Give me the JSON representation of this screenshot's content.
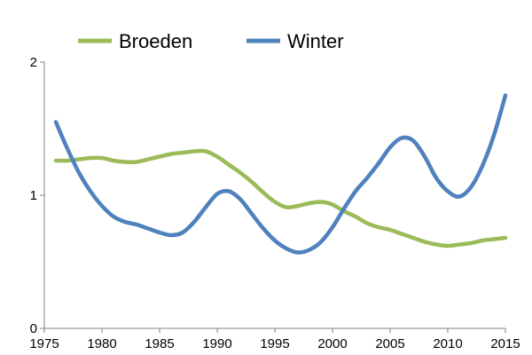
{
  "chart_data": {
    "type": "line",
    "x": [
      1976,
      1977,
      1978,
      1979,
      1980,
      1981,
      1982,
      1983,
      1984,
      1985,
      1986,
      1987,
      1988,
      1989,
      1990,
      1991,
      1992,
      1993,
      1994,
      1995,
      1996,
      1997,
      1998,
      1999,
      2000,
      2001,
      2002,
      2003,
      2004,
      2005,
      2006,
      2007,
      2008,
      2009,
      2010,
      2011,
      2012,
      2013,
      2014,
      2015
    ],
    "series": [
      {
        "name": "Broeden",
        "color": "#9BBB59",
        "values": [
          1.26,
          1.26,
          1.27,
          1.28,
          1.28,
          1.26,
          1.25,
          1.25,
          1.27,
          1.29,
          1.31,
          1.32,
          1.33,
          1.33,
          1.29,
          1.23,
          1.17,
          1.1,
          1.02,
          0.95,
          0.91,
          0.92,
          0.94,
          0.95,
          0.93,
          0.88,
          0.84,
          0.79,
          0.76,
          0.74,
          0.71,
          0.68,
          0.65,
          0.63,
          0.62,
          0.63,
          0.64,
          0.66,
          0.67,
          0.68
        ]
      },
      {
        "name": "Winter",
        "color": "#4F81BD",
        "values": [
          1.55,
          1.35,
          1.17,
          1.03,
          0.92,
          0.84,
          0.8,
          0.78,
          0.75,
          0.72,
          0.7,
          0.72,
          0.8,
          0.91,
          1.01,
          1.03,
          0.97,
          0.86,
          0.75,
          0.66,
          0.6,
          0.57,
          0.59,
          0.65,
          0.76,
          0.9,
          1.03,
          1.13,
          1.24,
          1.36,
          1.43,
          1.41,
          1.29,
          1.13,
          1.03,
          0.99,
          1.06,
          1.22,
          1.45,
          1.75
        ]
      }
    ],
    "xlim": [
      1975,
      2015
    ],
    "ylim": [
      0,
      2
    ],
    "x_ticks": [
      "1975",
      "1980",
      "1985",
      "1990",
      "1995",
      "2000",
      "2005",
      "2010",
      "2015"
    ],
    "y_ticks": [
      "0",
      "1",
      "2"
    ],
    "grid": false,
    "legend_position": "top",
    "axis_color": "#808080"
  }
}
